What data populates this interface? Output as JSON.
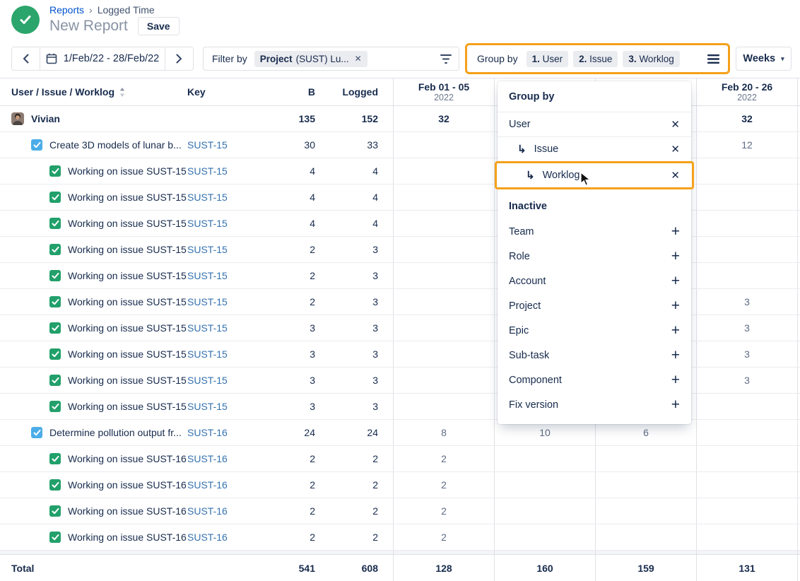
{
  "header": {
    "breadcrumb_parent": "Reports",
    "breadcrumb_separator": "›",
    "breadcrumb_current": "Logged Time",
    "title": "New Report",
    "save_label": "Save"
  },
  "toolbar": {
    "date_range": "1/Feb/22 - 28/Feb/22",
    "filter_label": "Filter by",
    "filter_chip_bold": "Project",
    "filter_chip_rest": "(SUST) Lu...",
    "group_by_label": "Group by",
    "group_chips": [
      {
        "num": "1.",
        "label": "User"
      },
      {
        "num": "2.",
        "label": "Issue"
      },
      {
        "num": "3.",
        "label": "Worklog"
      }
    ],
    "period_label": "Weeks"
  },
  "table": {
    "columns": {
      "name": "User / Issue / Worklog",
      "key": "Key",
      "b": "B",
      "logged": "Logged"
    },
    "week_columns": [
      {
        "label": "Feb 01 - 05",
        "year": "2022"
      },
      {
        "label": "",
        "year": ""
      },
      {
        "label": "",
        "year": ""
      },
      {
        "label": "Feb 20 - 26",
        "year": "2022"
      }
    ],
    "rows": [
      {
        "type": "group",
        "name": "Vivian",
        "key": "",
        "b": "135",
        "logged": "152",
        "weeks": [
          "32",
          "",
          "",
          "32"
        ]
      },
      {
        "type": "issue",
        "name": "Create 3D models of lunar b...",
        "key": "SUST-15",
        "b": "30",
        "logged": "33",
        "weeks": [
          "",
          "",
          "",
          "12"
        ]
      },
      {
        "type": "worklog",
        "name": "Working on issue SUST-15",
        "key": "SUST-15",
        "b": "4",
        "logged": "4",
        "weeks": [
          "",
          "",
          "",
          ""
        ]
      },
      {
        "type": "worklog",
        "name": "Working on issue SUST-15",
        "key": "SUST-15",
        "b": "4",
        "logged": "4",
        "weeks": [
          "",
          "",
          "",
          ""
        ]
      },
      {
        "type": "worklog",
        "name": "Working on issue SUST-15",
        "key": "SUST-15",
        "b": "4",
        "logged": "4",
        "weeks": [
          "",
          "",
          "",
          ""
        ]
      },
      {
        "type": "worklog",
        "name": "Working on issue SUST-15",
        "key": "SUST-15",
        "b": "2",
        "logged": "3",
        "weeks": [
          "",
          "",
          "",
          ""
        ]
      },
      {
        "type": "worklog",
        "name": "Working on issue SUST-15",
        "key": "SUST-15",
        "b": "2",
        "logged": "3",
        "weeks": [
          "",
          "",
          "",
          ""
        ]
      },
      {
        "type": "worklog",
        "name": "Working on issue SUST-15",
        "key": "SUST-15",
        "b": "2",
        "logged": "3",
        "weeks": [
          "",
          "",
          "",
          "3"
        ]
      },
      {
        "type": "worklog",
        "name": "Working on issue SUST-15",
        "key": "SUST-15",
        "b": "3",
        "logged": "3",
        "weeks": [
          "",
          "",
          "",
          "3"
        ]
      },
      {
        "type": "worklog",
        "name": "Working on issue SUST-15",
        "key": "SUST-15",
        "b": "3",
        "logged": "3",
        "weeks": [
          "",
          "",
          "",
          "3"
        ]
      },
      {
        "type": "worklog",
        "name": "Working on issue SUST-15",
        "key": "SUST-15",
        "b": "3",
        "logged": "3",
        "weeks": [
          "",
          "",
          "",
          "3"
        ]
      },
      {
        "type": "worklog",
        "name": "Working on issue SUST-15",
        "key": "SUST-15",
        "b": "3",
        "logged": "3",
        "weeks": [
          "",
          "",
          "",
          ""
        ]
      },
      {
        "type": "issue",
        "name": "Determine pollution output fr...",
        "key": "SUST-16",
        "b": "24",
        "logged": "24",
        "weeks": [
          "8",
          "10",
          "6",
          ""
        ]
      },
      {
        "type": "worklog",
        "name": "Working on issue SUST-16",
        "key": "SUST-16",
        "b": "2",
        "logged": "2",
        "weeks": [
          "2",
          "",
          "",
          ""
        ]
      },
      {
        "type": "worklog",
        "name": "Working on issue SUST-16",
        "key": "SUST-16",
        "b": "2",
        "logged": "2",
        "weeks": [
          "2",
          "",
          "",
          ""
        ]
      },
      {
        "type": "worklog",
        "name": "Working on issue SUST-16",
        "key": "SUST-16",
        "b": "2",
        "logged": "2",
        "weeks": [
          "2",
          "",
          "",
          ""
        ]
      },
      {
        "type": "worklog",
        "name": "Working on issue SUST-16",
        "key": "SUST-16",
        "b": "2",
        "logged": "2",
        "weeks": [
          "2",
          "",
          "",
          ""
        ]
      }
    ],
    "total": {
      "label": "Total",
      "b": "541",
      "logged": "608",
      "weeks": [
        "128",
        "160",
        "159",
        "131"
      ]
    }
  },
  "dropdown": {
    "title": "Group by",
    "active": [
      {
        "label": "User",
        "indent": 0,
        "highlighted": false
      },
      {
        "label": "Issue",
        "indent": 1,
        "highlighted": false
      },
      {
        "label": "Worklog",
        "indent": 2,
        "highlighted": true
      }
    ],
    "inactive_title": "Inactive",
    "inactive": [
      "Team",
      "Role",
      "Account",
      "Project",
      "Epic",
      "Sub-task",
      "Component",
      "Fix version"
    ]
  },
  "icons": {
    "close": "✕",
    "add": "+",
    "nested_arrow": "↳",
    "caret_down": "▾"
  },
  "colors": {
    "highlight_orange": "#F5A01A",
    "brand_green": "#2BA56B",
    "task_blue": "#4BADE8",
    "worklog_green": "#22A06B",
    "link_blue": "#0052CC",
    "key_link": "#3572B0"
  }
}
